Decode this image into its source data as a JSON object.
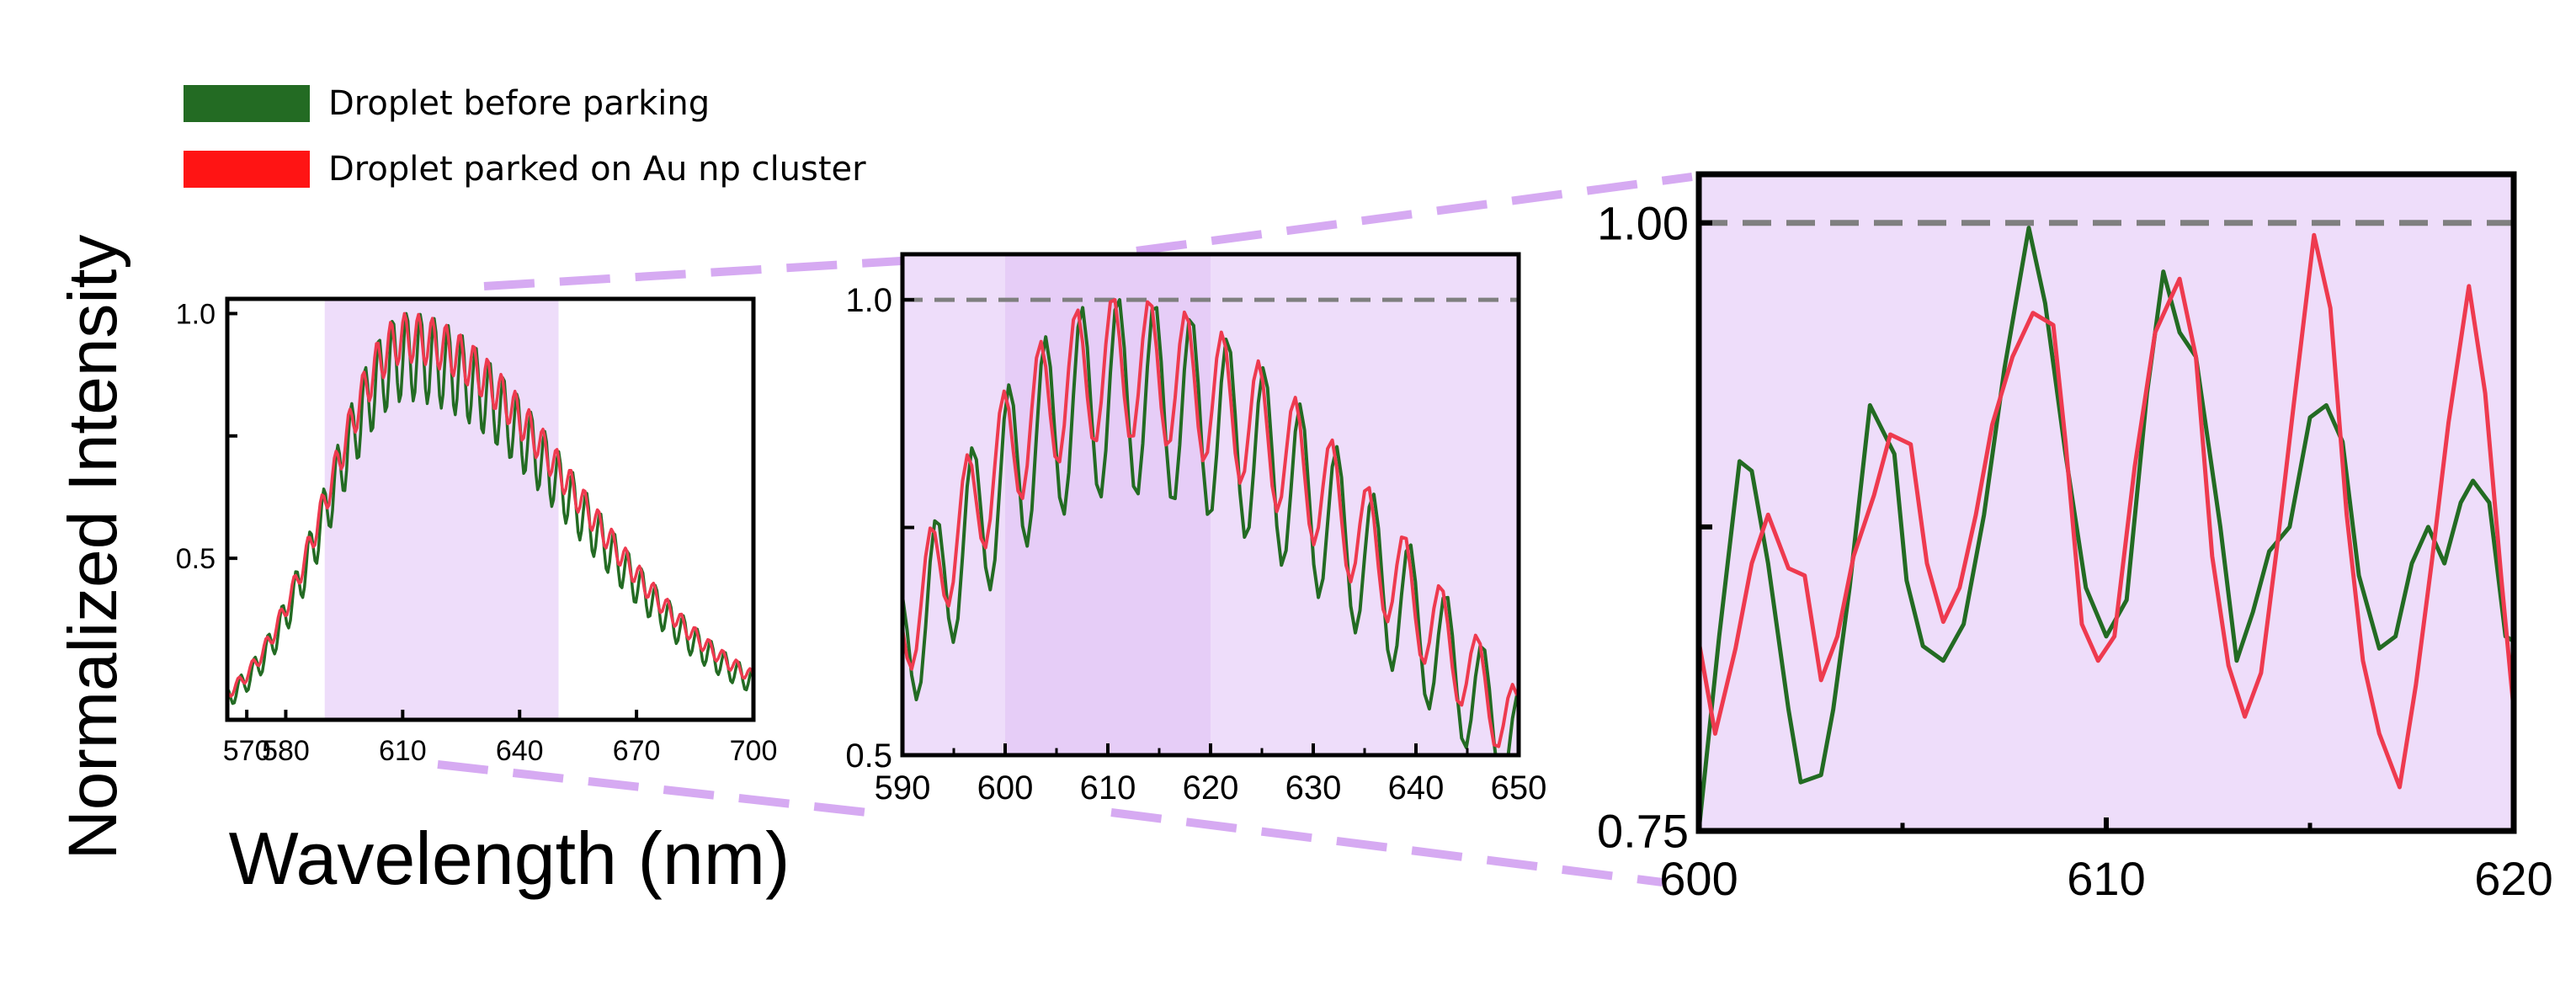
{
  "figure": {
    "ylabel": "Normalized Intensity",
    "xlabel": "Wavelength (nm)",
    "colors": {
      "before": "#236b23",
      "parked": "#ee3a4f",
      "legend_parked": "#ff1414",
      "highlight": "#eeddfa",
      "highlight_dark": "#e6cdf7",
      "zoom_lines": "#d6aaf2",
      "ref_line": "#7f7f7f"
    }
  },
  "legend": [
    {
      "label": "Droplet before parking",
      "series": "before"
    },
    {
      "label": "Droplet parked on Au np cluster",
      "series": "parked"
    }
  ],
  "chart_data": [
    {
      "id": "full",
      "type": "line",
      "title": "",
      "xlabel": "Wavelength (nm)",
      "ylabel": "Normalized Intensity",
      "xlim": [
        565,
        700
      ],
      "ylim": [
        0.17,
        1.03
      ],
      "x_ticks": [
        570,
        580,
        610,
        640,
        670,
        700
      ],
      "x_tick_labels": [
        "570",
        "580",
        "610",
        "640",
        "670",
        "700"
      ],
      "y_ticks": [
        0.5,
        1.0
      ],
      "y_tick_labels": [
        "0.5",
        "1.0"
      ],
      "highlight": [
        590,
        650
      ],
      "reference_line": null,
      "series_params": {
        "peak": 611,
        "width_left": 28,
        "width_right": 60,
        "period": 3.55,
        "mod_before": 0.09,
        "mod_parked": 0.05
      }
    },
    {
      "id": "mid",
      "type": "line",
      "title": "",
      "xlabel": "",
      "ylabel": "",
      "xlim": [
        590,
        650
      ],
      "ylim": [
        0.5,
        1.05
      ],
      "x_ticks": [
        590,
        600,
        610,
        620,
        630,
        640,
        650
      ],
      "x_tick_labels": [
        "590",
        "600",
        "610",
        "620",
        "630",
        "640",
        "650"
      ],
      "y_ticks": [
        0.5,
        1.0
      ],
      "y_tick_labels": [
        "0.5",
        "1.0"
      ],
      "highlight": [
        600,
        620
      ],
      "reference_line": 1.0,
      "series_params": {
        "peak": 611,
        "width_left": 30,
        "width_right": 45,
        "period": 3.55,
        "mod_before": 0.11,
        "mod_parked": 0.08
      }
    },
    {
      "id": "zoom",
      "type": "line",
      "title": "",
      "xlabel": "",
      "ylabel": "",
      "xlim": [
        600,
        620
      ],
      "ylim": [
        0.75,
        1.02
      ],
      "x_ticks": [
        600,
        610,
        620
      ],
      "x_tick_labels": [
        "600",
        "610",
        "620"
      ],
      "y_ticks": [
        0.75,
        1.0
      ],
      "y_tick_labels": [
        "0.75",
        "1.00"
      ],
      "highlight": null,
      "reference_line": 1.0,
      "series": [
        {
          "name": "Droplet before parking",
          "key": "before",
          "x": [
            600.0,
            600.5,
            601.0,
            601.3,
            601.7,
            602.2,
            602.5,
            603.0,
            603.3,
            603.7,
            604.2,
            604.8,
            605.1,
            605.5,
            606.0,
            606.5,
            607.0,
            607.5,
            608.1,
            608.5,
            609.0,
            609.5,
            610.0,
            610.5,
            611.0,
            611.4,
            611.8,
            612.2,
            612.8,
            613.2,
            613.6,
            614.0,
            614.5,
            615.0,
            615.4,
            615.8,
            616.2,
            616.7,
            617.1,
            617.5,
            617.9,
            618.3,
            618.7,
            619.0,
            619.4,
            619.8,
            620.0
          ],
          "y": [
            0.75,
            0.83,
            0.902,
            0.898,
            0.86,
            0.8,
            0.77,
            0.773,
            0.8,
            0.85,
            0.925,
            0.905,
            0.853,
            0.826,
            0.82,
            0.835,
            0.88,
            0.94,
            0.998,
            0.967,
            0.905,
            0.85,
            0.83,
            0.845,
            0.93,
            0.98,
            0.955,
            0.945,
            0.875,
            0.82,
            0.84,
            0.865,
            0.875,
            0.92,
            0.925,
            0.91,
            0.855,
            0.825,
            0.83,
            0.86,
            0.875,
            0.86,
            0.885,
            0.894,
            0.885,
            0.83,
            0.828
          ]
        },
        {
          "name": "Droplet parked on Au np cluster",
          "key": "parked",
          "x": [
            600.0,
            600.4,
            600.9,
            601.3,
            601.7,
            602.2,
            602.6,
            603.0,
            603.4,
            603.8,
            604.3,
            604.7,
            605.2,
            605.6,
            606.0,
            606.4,
            606.8,
            607.2,
            607.7,
            608.2,
            608.7,
            609.0,
            609.4,
            609.8,
            610.2,
            610.7,
            611.2,
            611.8,
            612.2,
            612.6,
            613.0,
            613.4,
            613.8,
            614.2,
            614.6,
            615.1,
            615.5,
            615.9,
            616.3,
            616.7,
            617.2,
            617.6,
            618.0,
            618.4,
            618.9,
            619.3,
            619.7,
            620.0
          ],
          "y": [
            0.828,
            0.79,
            0.825,
            0.86,
            0.88,
            0.858,
            0.855,
            0.812,
            0.83,
            0.863,
            0.888,
            0.913,
            0.909,
            0.86,
            0.836,
            0.85,
            0.88,
            0.917,
            0.945,
            0.963,
            0.958,
            0.91,
            0.835,
            0.82,
            0.83,
            0.9,
            0.955,
            0.977,
            0.945,
            0.863,
            0.818,
            0.797,
            0.815,
            0.868,
            0.925,
            0.995,
            0.965,
            0.88,
            0.82,
            0.79,
            0.768,
            0.81,
            0.862,
            0.918,
            0.974,
            0.93,
            0.853,
            0.8
          ]
        }
      ]
    }
  ]
}
